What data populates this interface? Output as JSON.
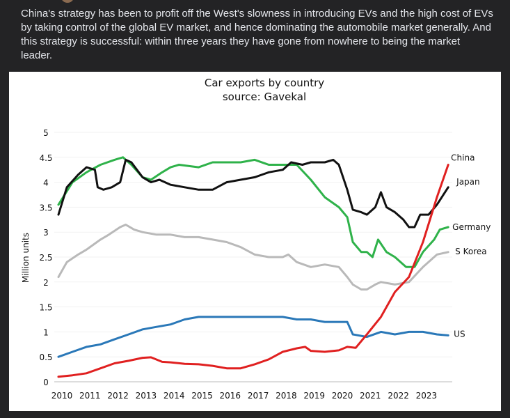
{
  "post": {
    "text": "China's strategy has been to profit off the West's slowness in introducing EVs and the high cost of EVs by taking control of the global EV market, and hence dominating the automobile market generally. And this strategy is successful: within three years they have gone from nowhere to being  the market leader."
  },
  "chart_data": {
    "type": "line",
    "title": "Car exports by country",
    "subtitle": "source: Gavekal",
    "xlabel": "",
    "ylabel": "Million units",
    "xlim": [
      2010,
      2024
    ],
    "ylim": [
      0,
      5
    ],
    "x_ticks": [
      "2010",
      "2011",
      "2012",
      "2013",
      "2014",
      "2015",
      "2016",
      "2017",
      "2018",
      "2019",
      "2020",
      "2021",
      "2022",
      "2023"
    ],
    "y_ticks": [
      "0",
      "0.5",
      "1",
      "1.5",
      "2",
      "2.5",
      "3",
      "3.5",
      "4",
      "4.5",
      "5"
    ],
    "grid": true,
    "legend": "direct labels at right end of lines",
    "series": [
      {
        "name": "Germany",
        "color": "#2fb24a",
        "points": [
          [
            2010,
            3.55
          ],
          [
            2010.5,
            4.0
          ],
          [
            2011,
            4.2
          ],
          [
            2011.5,
            4.35
          ],
          [
            2012,
            4.45
          ],
          [
            2012.3,
            4.5
          ],
          [
            2012.6,
            4.35
          ],
          [
            2013,
            4.1
          ],
          [
            2013.3,
            4.05
          ],
          [
            2013.7,
            4.2
          ],
          [
            2014,
            4.3
          ],
          [
            2014.3,
            4.35
          ],
          [
            2015,
            4.3
          ],
          [
            2015.5,
            4.4
          ],
          [
            2016,
            4.4
          ],
          [
            2016.5,
            4.4
          ],
          [
            2017,
            4.45
          ],
          [
            2017.5,
            4.35
          ],
          [
            2018,
            4.35
          ],
          [
            2018.5,
            4.35
          ],
          [
            2019,
            4.05
          ],
          [
            2019.5,
            3.7
          ],
          [
            2020,
            3.5
          ],
          [
            2020.3,
            3.3
          ],
          [
            2020.5,
            2.8
          ],
          [
            2020.8,
            2.6
          ],
          [
            2021,
            2.6
          ],
          [
            2021.2,
            2.5
          ],
          [
            2021.4,
            2.85
          ],
          [
            2021.7,
            2.6
          ],
          [
            2022,
            2.5
          ],
          [
            2022.4,
            2.3
          ],
          [
            2022.7,
            2.3
          ],
          [
            2023,
            2.6
          ],
          [
            2023.4,
            2.85
          ],
          [
            2023.6,
            3.05
          ],
          [
            2023.9,
            3.1
          ]
        ]
      },
      {
        "name": "Japan",
        "color": "#111111",
        "points": [
          [
            2010,
            3.35
          ],
          [
            2010.3,
            3.9
          ],
          [
            2010.7,
            4.15
          ],
          [
            2011,
            4.3
          ],
          [
            2011.3,
            4.25
          ],
          [
            2011.4,
            3.9
          ],
          [
            2011.6,
            3.85
          ],
          [
            2011.9,
            3.9
          ],
          [
            2012.2,
            4.0
          ],
          [
            2012.4,
            4.45
          ],
          [
            2012.6,
            4.4
          ],
          [
            2013,
            4.1
          ],
          [
            2013.3,
            4.0
          ],
          [
            2013.6,
            4.05
          ],
          [
            2014,
            3.95
          ],
          [
            2014.5,
            3.9
          ],
          [
            2015,
            3.85
          ],
          [
            2015.5,
            3.85
          ],
          [
            2016,
            4.0
          ],
          [
            2016.5,
            4.05
          ],
          [
            2017,
            4.1
          ],
          [
            2017.5,
            4.2
          ],
          [
            2018,
            4.25
          ],
          [
            2018.3,
            4.4
          ],
          [
            2018.7,
            4.35
          ],
          [
            2019,
            4.4
          ],
          [
            2019.5,
            4.4
          ],
          [
            2019.8,
            4.45
          ],
          [
            2020,
            4.35
          ],
          [
            2020.3,
            3.85
          ],
          [
            2020.5,
            3.45
          ],
          [
            2020.8,
            3.4
          ],
          [
            2021,
            3.35
          ],
          [
            2021.3,
            3.5
          ],
          [
            2021.5,
            3.8
          ],
          [
            2021.7,
            3.5
          ],
          [
            2022,
            3.4
          ],
          [
            2022.3,
            3.25
          ],
          [
            2022.5,
            3.1
          ],
          [
            2022.7,
            3.1
          ],
          [
            2022.9,
            3.35
          ],
          [
            2023.2,
            3.35
          ],
          [
            2023.5,
            3.55
          ],
          [
            2023.9,
            3.9
          ]
        ]
      },
      {
        "name": "S Korea",
        "color": "#b9b9b9",
        "points": [
          [
            2010,
            2.1
          ],
          [
            2010.3,
            2.4
          ],
          [
            2010.7,
            2.55
          ],
          [
            2011,
            2.65
          ],
          [
            2011.5,
            2.85
          ],
          [
            2011.8,
            2.95
          ],
          [
            2012.2,
            3.1
          ],
          [
            2012.4,
            3.15
          ],
          [
            2012.7,
            3.05
          ],
          [
            2013,
            3.0
          ],
          [
            2013.5,
            2.95
          ],
          [
            2014,
            2.95
          ],
          [
            2014.5,
            2.9
          ],
          [
            2015,
            2.9
          ],
          [
            2015.5,
            2.85
          ],
          [
            2016,
            2.8
          ],
          [
            2016.5,
            2.7
          ],
          [
            2017,
            2.55
          ],
          [
            2017.5,
            2.5
          ],
          [
            2018,
            2.5
          ],
          [
            2018.2,
            2.55
          ],
          [
            2018.5,
            2.4
          ],
          [
            2019,
            2.3
          ],
          [
            2019.5,
            2.35
          ],
          [
            2020,
            2.3
          ],
          [
            2020.3,
            2.1
          ],
          [
            2020.5,
            1.95
          ],
          [
            2020.8,
            1.85
          ],
          [
            2021,
            1.85
          ],
          [
            2021.3,
            1.95
          ],
          [
            2021.5,
            2.0
          ],
          [
            2022,
            1.95
          ],
          [
            2022.5,
            2.0
          ],
          [
            2023,
            2.3
          ],
          [
            2023.5,
            2.55
          ],
          [
            2023.9,
            2.6
          ]
        ]
      },
      {
        "name": "US",
        "color": "#2a78b8",
        "points": [
          [
            2010,
            0.5
          ],
          [
            2010.5,
            0.6
          ],
          [
            2011,
            0.7
          ],
          [
            2011.5,
            0.75
          ],
          [
            2012,
            0.85
          ],
          [
            2012.5,
            0.95
          ],
          [
            2013,
            1.05
          ],
          [
            2013.5,
            1.1
          ],
          [
            2014,
            1.15
          ],
          [
            2014.5,
            1.25
          ],
          [
            2015,
            1.3
          ],
          [
            2015.5,
            1.3
          ],
          [
            2016,
            1.3
          ],
          [
            2016.5,
            1.3
          ],
          [
            2017,
            1.3
          ],
          [
            2017.5,
            1.3
          ],
          [
            2018,
            1.3
          ],
          [
            2018.5,
            1.25
          ],
          [
            2019,
            1.25
          ],
          [
            2019.5,
            1.2
          ],
          [
            2020,
            1.2
          ],
          [
            2020.3,
            1.2
          ],
          [
            2020.5,
            0.95
          ],
          [
            2021,
            0.9
          ],
          [
            2021.5,
            1.0
          ],
          [
            2022,
            0.95
          ],
          [
            2022.5,
            1.0
          ],
          [
            2023,
            1.0
          ],
          [
            2023.5,
            0.95
          ],
          [
            2023.9,
            0.93
          ]
        ]
      },
      {
        "name": "China",
        "color": "#e02020",
        "points": [
          [
            2010,
            0.1
          ],
          [
            2010.5,
            0.13
          ],
          [
            2011,
            0.17
          ],
          [
            2011.5,
            0.27
          ],
          [
            2012,
            0.37
          ],
          [
            2012.5,
            0.42
          ],
          [
            2013,
            0.48
          ],
          [
            2013.3,
            0.49
          ],
          [
            2013.7,
            0.4
          ],
          [
            2014,
            0.39
          ],
          [
            2014.5,
            0.36
          ],
          [
            2015,
            0.35
          ],
          [
            2015.5,
            0.32
          ],
          [
            2016,
            0.27
          ],
          [
            2016.5,
            0.27
          ],
          [
            2017,
            0.35
          ],
          [
            2017.5,
            0.45
          ],
          [
            2018,
            0.6
          ],
          [
            2018.5,
            0.67
          ],
          [
            2018.8,
            0.7
          ],
          [
            2019,
            0.62
          ],
          [
            2019.5,
            0.6
          ],
          [
            2020,
            0.63
          ],
          [
            2020.3,
            0.7
          ],
          [
            2020.6,
            0.68
          ],
          [
            2021,
            0.95
          ],
          [
            2021.5,
            1.3
          ],
          [
            2022,
            1.8
          ],
          [
            2022.5,
            2.1
          ],
          [
            2023,
            2.8
          ],
          [
            2023.5,
            3.7
          ],
          [
            2023.9,
            4.35
          ]
        ]
      }
    ]
  }
}
